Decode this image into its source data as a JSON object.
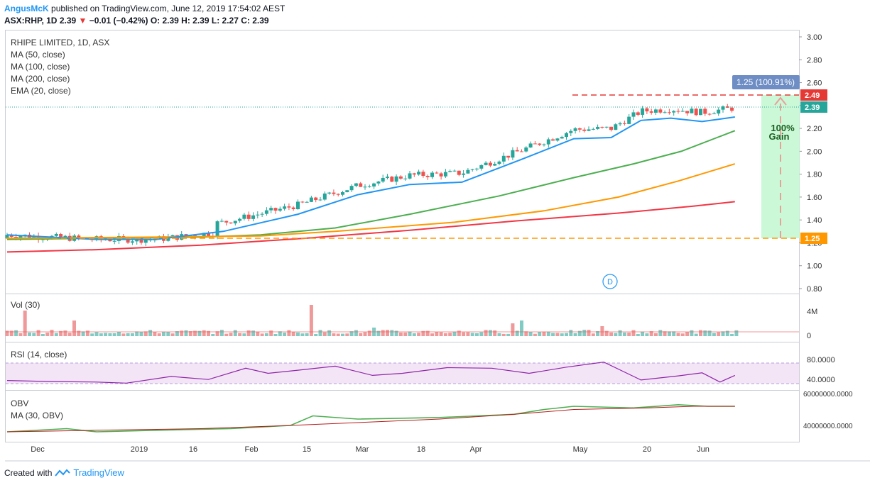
{
  "header": {
    "author": "AngusMcK",
    "published_text": "published on TradingView.com, June 12, 2019 17:54:02 AEST",
    "symbol_line": "ASX:RHP, 1D",
    "last": "2.39",
    "change_arrow": "▼",
    "change": "−0.01 (−0.42%)",
    "ohlc": "O: 2.39 H: 2.39 L: 2.27 C: 2.39"
  },
  "legend": {
    "title": "RHIPE LIMITED, 1D, ASX",
    "ma50": "MA (50, close)",
    "ma100": "MA (100, close)",
    "ma200": "MA (200, close)",
    "ema20": "EMA (20, close)"
  },
  "panes": {
    "vol_label": "Vol (30)",
    "rsi_label": "RSI (14, close)",
    "obv_label": "OBV",
    "obv_ma_label": "MA (30, OBV)"
  },
  "annotations": {
    "range_label": "1.25 (100.91%)",
    "gain_line1": "100%",
    "gain_line2": "Gain",
    "event_marker": "D",
    "price_high": "2.49",
    "price_last": "2.39",
    "price_low": "1.25"
  },
  "footer": {
    "created_with": "Created with",
    "brand": "TradingView"
  },
  "colors": {
    "up": "#26a69a",
    "down": "#ef5350",
    "ema20": "#2196f3",
    "ma50": "#4caf50",
    "ma100": "#ff9800",
    "ma200": "#f23645",
    "rsi": "#8e24aa",
    "obv": "#4caf50",
    "obv_ma": "#b71c1c"
  },
  "chart_data": [
    {
      "type": "candlestick",
      "title": "RHIPE LIMITED, 1D, ASX",
      "x_ticks": [
        "Dec",
        "2019",
        "16",
        "Feb",
        "15",
        "Mar",
        "18",
        "Apr",
        "May",
        "20",
        "Jun"
      ],
      "y_ticks": [
        0.8,
        1.0,
        1.2,
        1.4,
        1.6,
        1.8,
        2.0,
        2.2,
        2.4,
        2.6,
        2.8,
        3.0
      ],
      "ylim": [
        0.75,
        3.05
      ],
      "series": [
        {
          "name": "MA (50, close)",
          "points": [
            [
              0,
              1.23
            ],
            [
              60,
              1.24
            ],
            [
              130,
              1.25
            ],
            [
              170,
              1.27
            ],
            [
              220,
              1.33
            ],
            [
              270,
              1.45
            ],
            [
              330,
              1.61
            ],
            [
              380,
              1.77
            ],
            [
              420,
              1.89
            ],
            [
              452,
              2.0
            ],
            [
              476,
              2.12
            ],
            [
              488,
              2.18
            ]
          ]
        },
        {
          "name": "MA (100, close)",
          "points": [
            [
              0,
              1.24
            ],
            [
              100,
              1.25
            ],
            [
              170,
              1.26
            ],
            [
              220,
              1.3
            ],
            [
              300,
              1.38
            ],
            [
              360,
              1.48
            ],
            [
              410,
              1.6
            ],
            [
              450,
              1.74
            ],
            [
              488,
              1.89
            ]
          ]
        },
        {
          "name": "MA (200, close)",
          "points": [
            [
              0,
              1.12
            ],
            [
              60,
              1.14
            ],
            [
              130,
              1.18
            ],
            [
              200,
              1.24
            ],
            [
              270,
              1.31
            ],
            [
              340,
              1.39
            ],
            [
              410,
              1.46
            ],
            [
              460,
              1.52
            ],
            [
              488,
              1.56
            ]
          ]
        },
        {
          "name": "EMA (20, close)",
          "points": [
            [
              0,
              1.27
            ],
            [
              60,
              1.23
            ],
            [
              100,
              1.23
            ],
            [
              145,
              1.3
            ],
            [
              195,
              1.45
            ],
            [
              235,
              1.62
            ],
            [
              270,
              1.71
            ],
            [
              305,
              1.73
            ],
            [
              345,
              1.93
            ],
            [
              380,
              2.11
            ],
            [
              405,
              2.12
            ],
            [
              425,
              2.27
            ],
            [
              445,
              2.29
            ],
            [
              466,
              2.26
            ],
            [
              488,
              2.3
            ]
          ]
        }
      ],
      "levels": [
        2.49,
        2.39,
        1.25
      ]
    },
    {
      "type": "bar",
      "title": "Vol (30)",
      "y_ticks": [
        "0",
        "4M"
      ]
    },
    {
      "type": "line",
      "title": "RSI (14, close)",
      "y_ticks": [
        "40.0000",
        "80.0000"
      ],
      "series": [
        {
          "name": "RSI (14, close)",
          "points": [
            [
              0,
              46
            ],
            [
              30,
              44
            ],
            [
              60,
              43
            ],
            [
              80,
              41
            ],
            [
              110,
              54
            ],
            [
              135,
              48
            ],
            [
              160,
              70
            ],
            [
              175,
              60
            ],
            [
              195,
              66
            ],
            [
              220,
              74
            ],
            [
              245,
              56
            ],
            [
              265,
              60
            ],
            [
              295,
              71
            ],
            [
              325,
              70
            ],
            [
              350,
              60
            ],
            [
              375,
              72
            ],
            [
              400,
              82
            ],
            [
              425,
              47
            ],
            [
              450,
              55
            ],
            [
              466,
              61
            ],
            [
              478,
              43
            ],
            [
              488,
              56
            ]
          ]
        }
      ]
    },
    {
      "type": "line",
      "title": "OBV",
      "y_ticks": [
        "40000000.0000",
        "60000000.0000"
      ],
      "series": [
        {
          "name": "OBV",
          "points": [
            [
              0,
              36
            ],
            [
              40,
              38
            ],
            [
              60,
              36
            ],
            [
              100,
              37
            ],
            [
              150,
              38
            ],
            [
              190,
              40
            ],
            [
              205,
              46
            ],
            [
              235,
              44
            ],
            [
              290,
              45
            ],
            [
              340,
              47
            ],
            [
              360,
              50
            ],
            [
              380,
              52
            ],
            [
              420,
              51
            ],
            [
              450,
              53
            ],
            [
              470,
              52
            ],
            [
              488,
              52
            ]
          ]
        },
        {
          "name": "MA (30, OBV)",
          "points": [
            [
              0,
              36
            ],
            [
              60,
              37
            ],
            [
              130,
              38
            ],
            [
              190,
              40
            ],
            [
              240,
              42
            ],
            [
              290,
              44
            ],
            [
              340,
              47
            ],
            [
              380,
              50
            ],
            [
              430,
              51
            ],
            [
              460,
              52
            ],
            [
              488,
              52
            ]
          ]
        }
      ]
    }
  ]
}
